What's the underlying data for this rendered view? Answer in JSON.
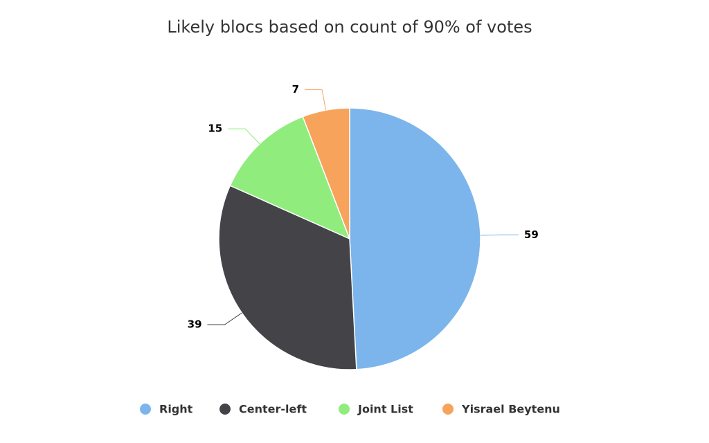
{
  "chart_data": {
    "type": "pie",
    "title": "Likely blocs based on count of 90% of votes",
    "categories": [
      "Right",
      "Center-left",
      "Joint List",
      "Yisrael Beytenu"
    ],
    "values": [
      59,
      39,
      15,
      7
    ],
    "colors": [
      "#7cb5ec",
      "#434348",
      "#90ed7d",
      "#f7a35c"
    ],
    "legend": "bottom"
  }
}
